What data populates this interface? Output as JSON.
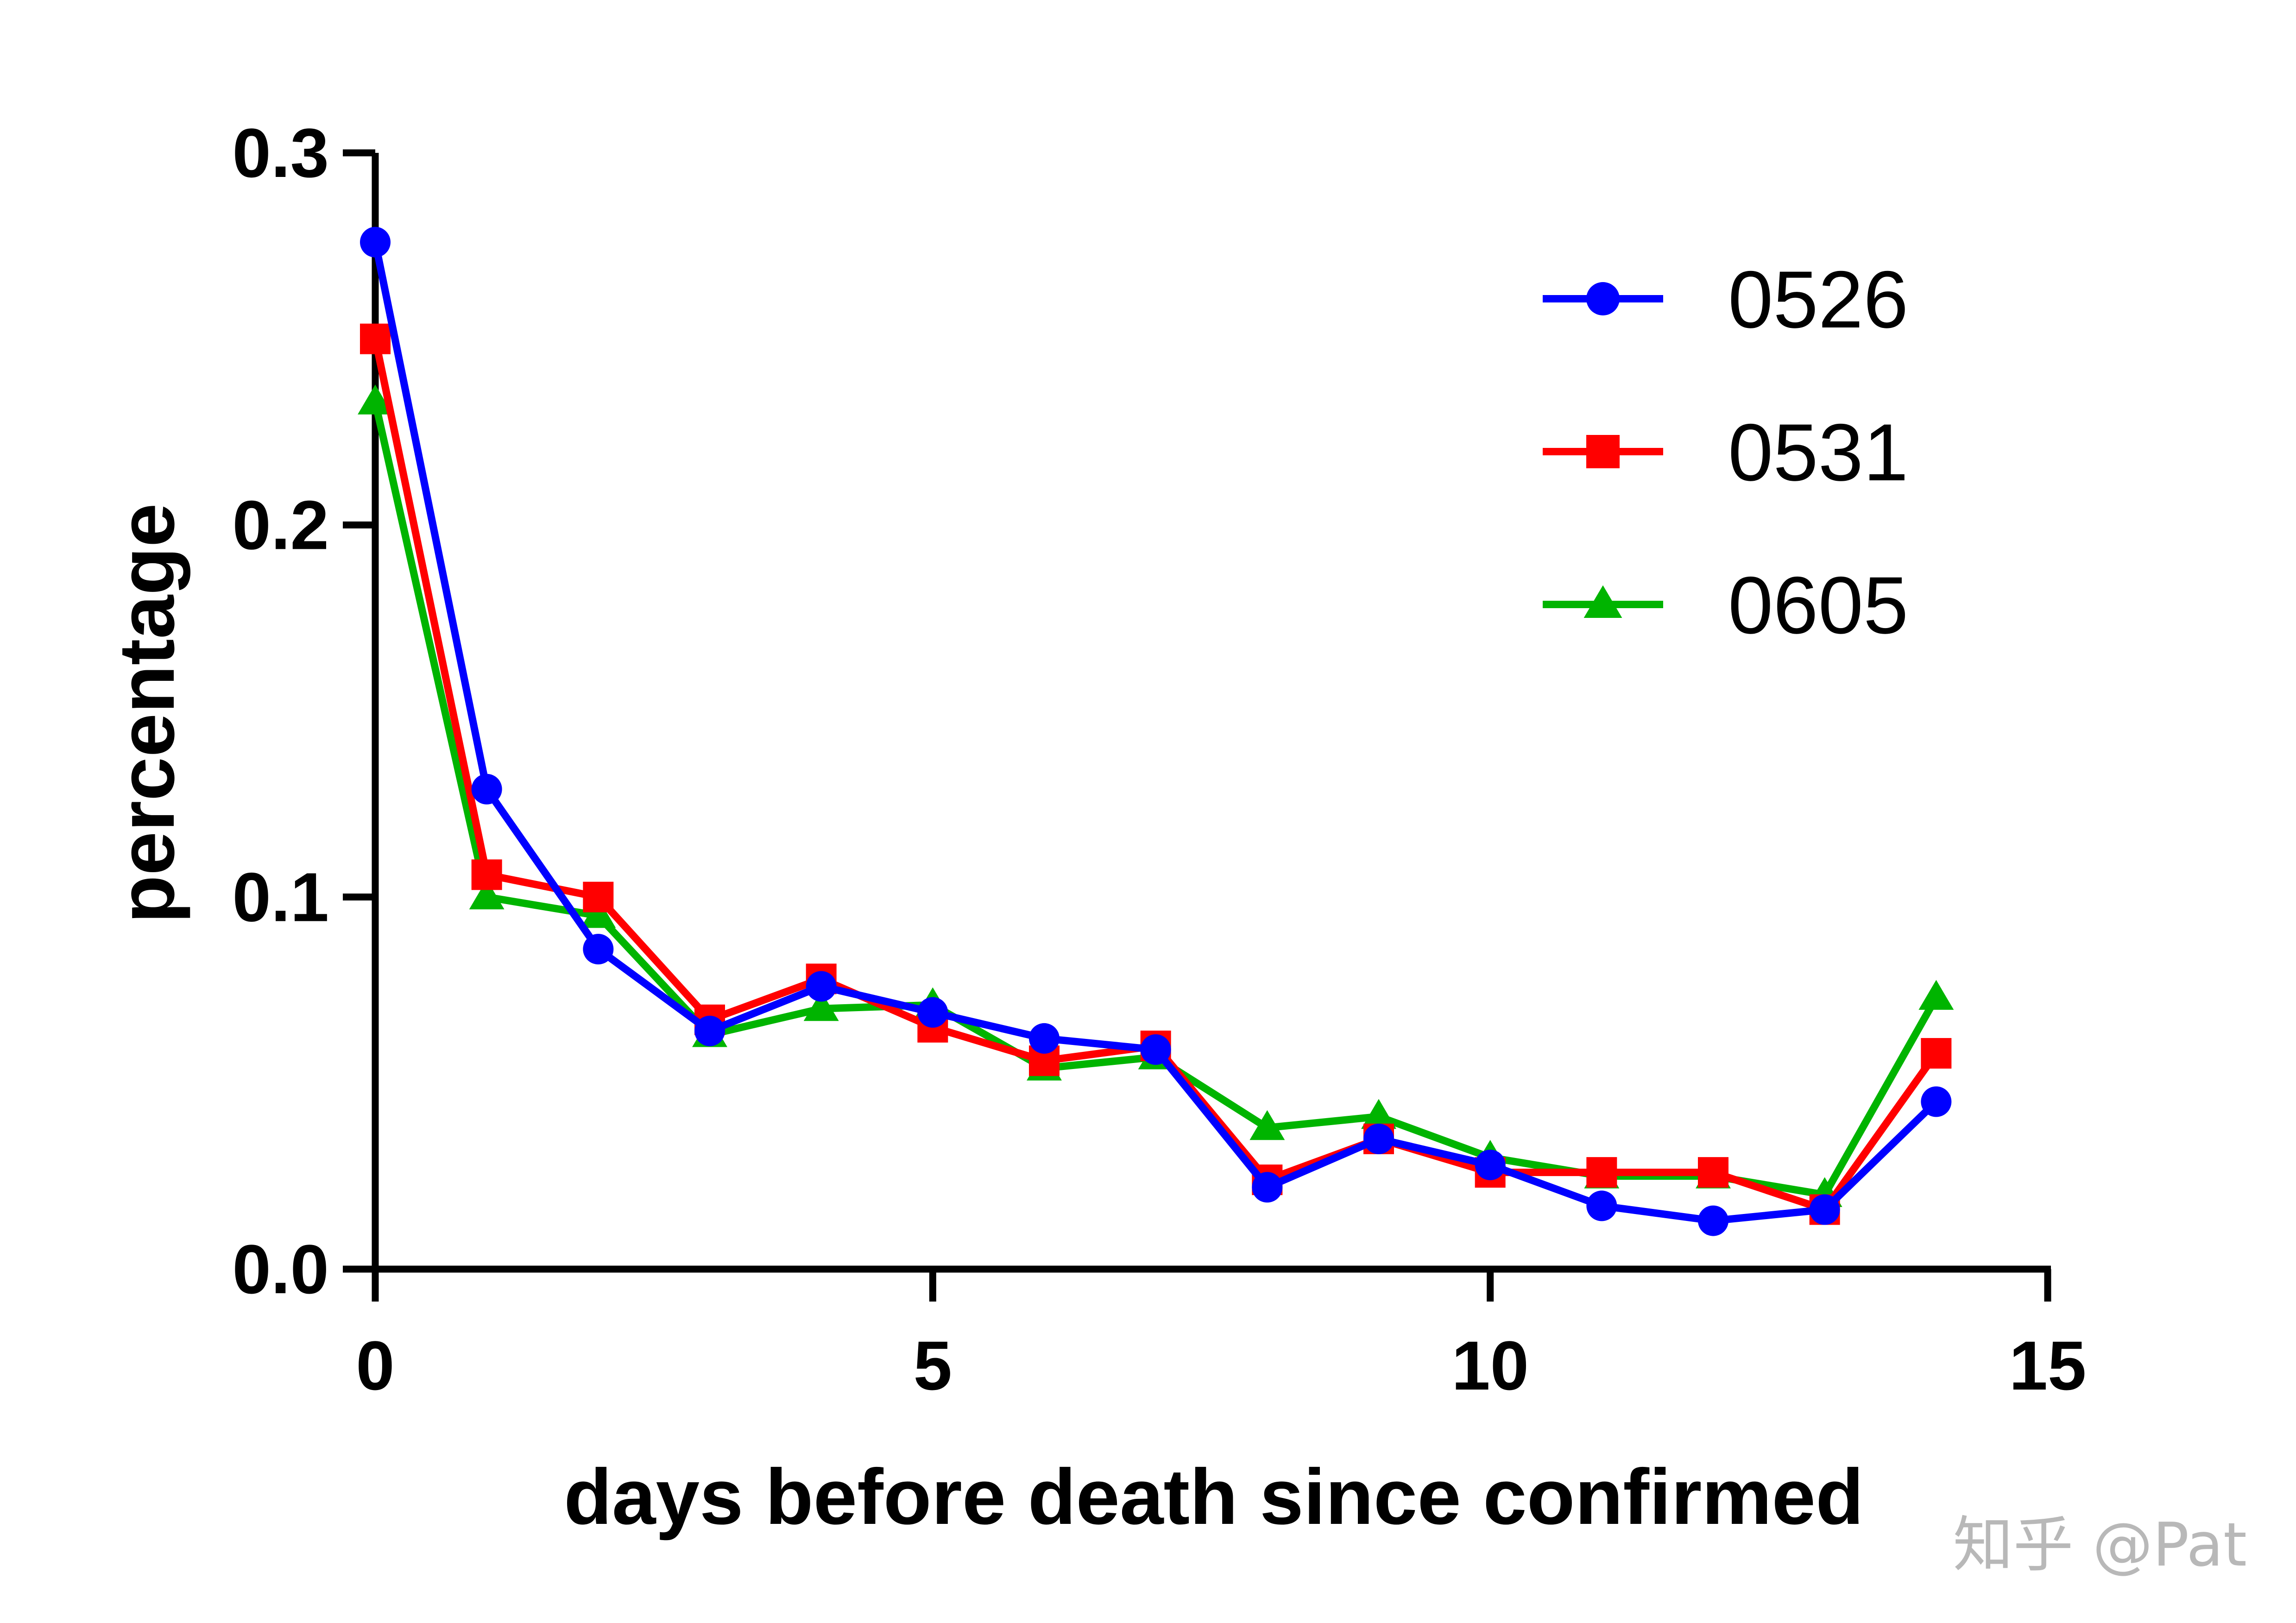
{
  "watermark": "知乎 @Pat",
  "chart_data": {
    "type": "line",
    "title": "",
    "xlabel": "days before death since confirmed",
    "ylabel": "percentage",
    "xlim": [
      0,
      15
    ],
    "ylim": [
      0,
      0.3
    ],
    "x_ticks": [
      0,
      5,
      10,
      15
    ],
    "x_tick_labels": [
      "0",
      "5",
      "10",
      "15"
    ],
    "y_ticks": [
      0,
      0.1,
      0.2,
      0.3
    ],
    "y_tick_labels": [
      "0.0",
      "0.1",
      "0.2",
      "0.3"
    ],
    "grid": false,
    "legend_position": "top-right",
    "x": [
      0,
      1,
      2,
      3,
      4,
      5,
      6,
      7,
      8,
      9,
      10,
      11,
      12,
      13,
      14
    ],
    "series": [
      {
        "name": "0605",
        "color": "#00b400",
        "marker": "triangle",
        "values": [
          0.233,
          0.1,
          0.095,
          0.063,
          0.07,
          0.071,
          0.054,
          0.057,
          0.038,
          0.041,
          0.03,
          0.025,
          0.025,
          0.02,
          0.073
        ]
      },
      {
        "name": "0531",
        "color": "#ff0000",
        "marker": "square",
        "values": [
          0.25,
          0.106,
          0.1,
          0.067,
          0.078,
          0.065,
          0.056,
          0.06,
          0.024,
          0.035,
          0.026,
          0.026,
          0.026,
          0.016,
          0.058
        ]
      },
      {
        "name": "0526",
        "color": "#0000ff",
        "marker": "circle",
        "values": [
          0.276,
          0.129,
          0.086,
          0.064,
          0.076,
          0.069,
          0.062,
          0.059,
          0.022,
          0.035,
          0.028,
          0.017,
          0.013,
          0.016,
          0.045
        ]
      }
    ],
    "legend_order": [
      "0526",
      "0531",
      "0605"
    ]
  }
}
